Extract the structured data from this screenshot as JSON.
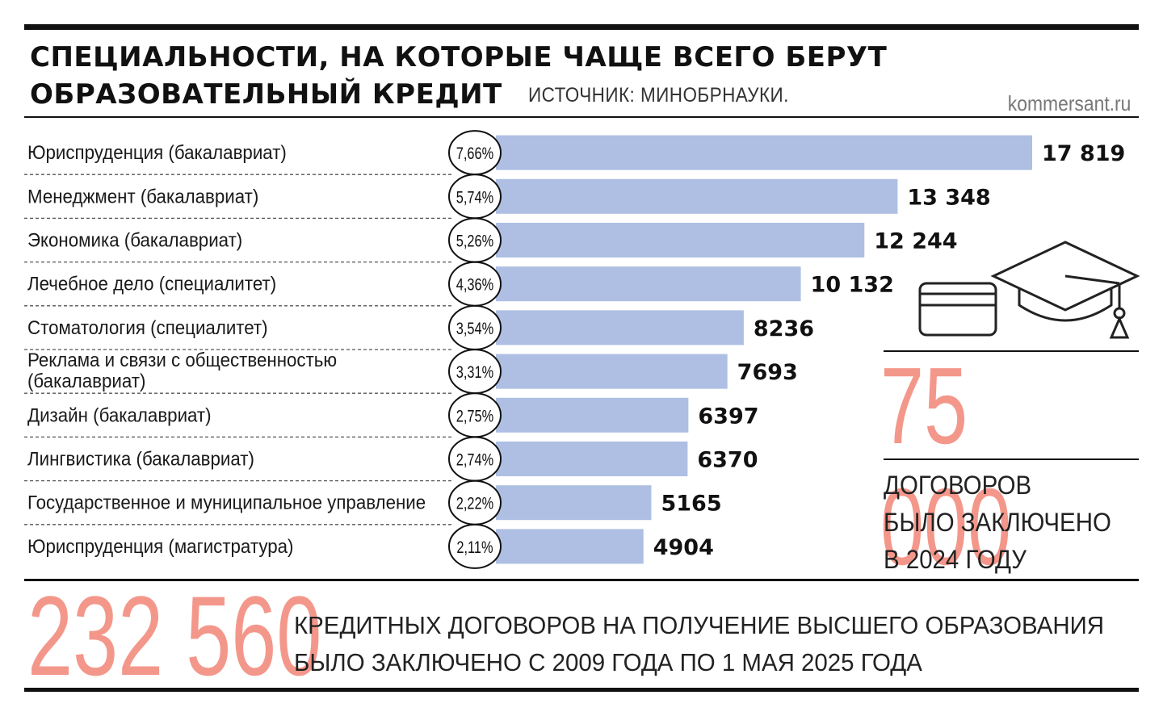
{
  "header": {
    "title_line1": "СПЕЦИАЛЬНОСТИ, НА КОТОРЫЕ ЧАЩЕ ВСЕГО БЕРУТ",
    "title_line2": "ОБРАЗОВАТЕЛЬНЫЙ КРЕДИТ",
    "source": "ИСТОЧНИК: МИНОБРНАУКИ.",
    "site": "kommersant.ru"
  },
  "chart_data": {
    "type": "bar",
    "orientation": "horizontal",
    "categories": [
      [
        "Юриспруденция (бакалавриат)"
      ],
      [
        "Менеджмент (бакалавриат)"
      ],
      [
        "Экономика (бакалавриат)"
      ],
      [
        "Лечебное дело (специалитет)"
      ],
      [
        "Стоматология (специалитет)"
      ],
      [
        "Реклама и связи с общественностью",
        "(бакалавриат)"
      ],
      [
        "Дизайн (бакалавриат)"
      ],
      [
        "Лингвистика (бакалавриат)"
      ],
      [
        "Государственное и муниципальное управление"
      ],
      [
        "Юриспруденция (магистратура)"
      ]
    ],
    "values": [
      17819,
      13348,
      12244,
      10132,
      8236,
      7693,
      6397,
      6370,
      5165,
      4904
    ],
    "value_labels": [
      "17 819",
      "13 348",
      "12 244",
      "10 132",
      "8236",
      "7693",
      "6397",
      "6370",
      "5165",
      "4904"
    ],
    "shares": [
      "7,66%",
      "5,74%",
      "5,26%",
      "4,36%",
      "3,54%",
      "3,31%",
      "2,75%",
      "2,74%",
      "2,22%",
      "2,11%"
    ],
    "bar_color": "#aebfe3"
  },
  "side_stat": {
    "number": "75 000",
    "lines": [
      "ДОГОВОРОВ",
      "БЫЛО ЗАКЛЮЧЕНО",
      "В 2024 ГОДУ"
    ]
  },
  "bottom_stat": {
    "number": "232 560",
    "line1": "КРЕДИТНЫХ ДОГОВОРОВ НА ПОЛУЧЕНИЕ ВЫСШЕГО ОБРАЗОВАНИЯ",
    "line2": "БЫЛО ЗАКЛЮЧЕНО С 2009 ГОДА ПО 1 МАЯ 2025 ГОДА"
  },
  "colors": {
    "accent": "#f4978b",
    "bar": "#aebfe3",
    "rule": "#111111"
  },
  "icons": [
    "credit-card-icon",
    "graduation-cap-icon"
  ]
}
